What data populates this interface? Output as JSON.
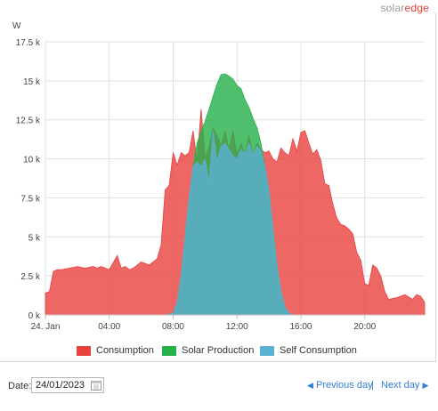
{
  "brand": {
    "part1": "solar",
    "part2": "edge"
  },
  "chart_data": {
    "type": "area",
    "ylabel": "W",
    "ylim": [
      0,
      17500
    ],
    "yticks": [
      0,
      2500,
      5000,
      7500,
      10000,
      12500,
      15000,
      17500
    ],
    "ytick_labels": [
      "0 k",
      "2.5 k",
      "5 k",
      "7.5 k",
      "10 k",
      "12.5 k",
      "15 k",
      "17.5 k"
    ],
    "xlim": [
      0,
      23.75
    ],
    "xticks": [
      0,
      4,
      8,
      12,
      16,
      20
    ],
    "xtick_labels": [
      "24. Jan",
      "04:00",
      "08:00",
      "12:00",
      "16:00",
      "20:00"
    ],
    "grid": true,
    "legend_position": "bottom",
    "series": [
      {
        "name": "Consumption",
        "color": "#e8413f",
        "x": [
          0,
          0.25,
          0.5,
          0.75,
          1,
          1.5,
          2,
          2.5,
          3,
          3.25,
          3.5,
          4,
          4.5,
          4.75,
          5,
          5.25,
          5.5,
          6,
          6.5,
          7,
          7.25,
          7.5,
          7.75,
          8,
          8.25,
          8.5,
          8.75,
          9,
          9.25,
          9.5,
          9.75,
          10,
          10.25,
          10.5,
          10.75,
          11,
          11.25,
          11.5,
          11.75,
          12,
          12.25,
          12.5,
          12.75,
          13,
          13.25,
          13.5,
          13.75,
          14,
          14.25,
          14.5,
          14.75,
          15,
          15.25,
          15.5,
          15.75,
          16,
          16.25,
          16.5,
          16.75,
          17,
          17.25,
          17.5,
          17.75,
          18,
          18.25,
          18.5,
          18.75,
          19,
          19.25,
          19.5,
          19.75,
          20,
          20.25,
          20.5,
          20.75,
          21,
          21.25,
          21.5,
          22,
          22.5,
          23,
          23.25,
          23.5,
          23.75
        ],
        "values": [
          1400,
          1500,
          2800,
          2900,
          2900,
          3000,
          3100,
          3000,
          3100,
          3000,
          3100,
          2900,
          3800,
          3000,
          3100,
          2900,
          3000,
          3400,
          3200,
          3600,
          4500,
          8000,
          8300,
          10400,
          9600,
          10400,
          10200,
          10400,
          11800,
          9800,
          13200,
          10000,
          10800,
          12000,
          11500,
          10800,
          11800,
          10600,
          11800,
          10200,
          11000,
          10300,
          11500,
          10200,
          11000,
          10600,
          10400,
          10500,
          10000,
          9800,
          10700,
          10400,
          10200,
          11300,
          10500,
          11700,
          11800,
          11000,
          10300,
          10600,
          9900,
          8400,
          8300,
          7100,
          6200,
          5800,
          5700,
          5500,
          5200,
          4000,
          3500,
          2000,
          1900,
          3200,
          3000,
          2500,
          1500,
          1000,
          1100,
          1300,
          1000,
          1300,
          1200,
          800
        ]
      },
      {
        "name": "Solar Production",
        "color": "#26b04a",
        "x": [
          7.5,
          8,
          8.25,
          8.5,
          8.75,
          9,
          9.25,
          9.5,
          9.75,
          10,
          10.25,
          10.5,
          10.75,
          11,
          11.25,
          11.5,
          11.75,
          12,
          12.25,
          12.5,
          12.75,
          13,
          13.25,
          13.5,
          13.75,
          14,
          14.25,
          14.5,
          14.75,
          15,
          15.25,
          15.5
        ],
        "values": [
          0,
          100,
          800,
          2500,
          5000,
          7500,
          9500,
          11000,
          11800,
          12400,
          13200,
          14000,
          14800,
          15400,
          15450,
          15300,
          15100,
          14700,
          14500,
          13800,
          13300,
          12600,
          12000,
          11000,
          9500,
          8000,
          5500,
          3200,
          1500,
          500,
          100,
          0
        ]
      },
      {
        "name": "Self Consumption",
        "color": "#5bb0d6",
        "x": [
          7.5,
          8,
          8.25,
          8.5,
          8.75,
          9,
          9.25,
          9.5,
          9.75,
          10,
          10.25,
          10.5,
          10.75,
          11,
          11.25,
          11.5,
          11.75,
          12,
          12.25,
          12.5,
          12.75,
          13,
          13.25,
          13.5,
          13.75,
          14,
          14.25,
          14.5,
          14.75,
          15,
          15.25,
          15.5
        ],
        "values": [
          0,
          100,
          800,
          2500,
          5000,
          7500,
          9500,
          9800,
          9500,
          10000,
          8500,
          11800,
          9800,
          10800,
          11000,
          10600,
          10200,
          10000,
          10600,
          10300,
          11000,
          10200,
          10800,
          10500,
          9500,
          8000,
          5500,
          3200,
          1500,
          500,
          100,
          0
        ]
      }
    ]
  },
  "controls": {
    "date_label": "Date:",
    "date_value": "24/01/2023",
    "prev_label": "Previous day",
    "separator": "|",
    "next_label": "Next day",
    "prev_arrow": "◀",
    "next_arrow": "▶"
  }
}
